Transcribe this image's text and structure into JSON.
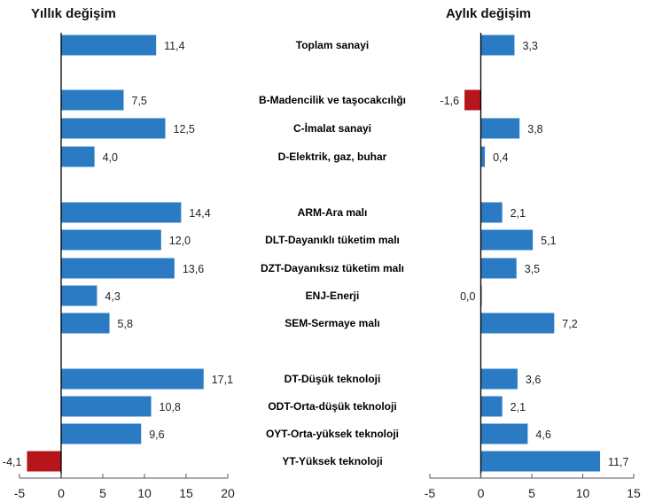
{
  "chart_data": [
    {
      "type": "bar",
      "orientation": "horizontal",
      "title": "Yıllık değişim",
      "xlabel": "",
      "ylabel": "",
      "xlim": [
        -5,
        20
      ],
      "xticks": [
        -5,
        0,
        5,
        10,
        15,
        20
      ],
      "categories": [
        "Toplam sanayi",
        "B-Madencilik ve taşocakcılığı",
        "C-İmalat sanayi",
        "D-Elektrik, gaz, buhar",
        "ARM-Ara malı",
        "DLT-Dayanıklı tüketim malı",
        "DZT-Dayanıksız tüketim malı",
        "ENJ-Enerji",
        "SEM-Sermaye malı",
        "DT-Düşük teknoloji",
        "ODT-Orta-düşük teknoloji",
        "OYT-Orta-yüksek teknoloji",
        "YT-Yüksek teknoloji"
      ],
      "values": [
        11.4,
        7.5,
        12.5,
        4.0,
        14.4,
        12.0,
        13.6,
        4.3,
        5.8,
        17.1,
        10.8,
        9.6,
        -4.1
      ],
      "value_labels": [
        "11,4",
        "7,5",
        "12,5",
        "4,0",
        "14,4",
        "12,0",
        "13,6",
        "4,3",
        "5,8",
        "17,1",
        "10,8",
        "9,6",
        "-4,1"
      ],
      "grid": false
    },
    {
      "type": "bar",
      "orientation": "horizontal",
      "title": "Aylık değişim",
      "xlabel": "",
      "ylabel": "",
      "xlim": [
        -5,
        15
      ],
      "xticks": [
        -5,
        0,
        5,
        10,
        15
      ],
      "categories": [
        "Toplam sanayi",
        "B-Madencilik ve taşocakcılığı",
        "C-İmalat sanayi",
        "D-Elektrik, gaz, buhar",
        "ARM-Ara malı",
        "DLT-Dayanıklı tüketim malı",
        "DZT-Dayanıksız tüketim malı",
        "ENJ-Enerji",
        "SEM-Sermaye malı",
        "DT-Düşük teknoloji",
        "ODT-Orta-düşük teknoloji",
        "OYT-Orta-yüksek teknoloji",
        "YT-Yüksek teknoloji"
      ],
      "values": [
        3.3,
        -1.6,
        3.8,
        0.4,
        2.1,
        5.1,
        3.5,
        0.0,
        7.2,
        3.6,
        2.1,
        4.6,
        11.7
      ],
      "value_labels": [
        "3,3",
        "-1,6",
        "3,8",
        "0,4",
        "2,1",
        "5,1",
        "3,5",
        "0,0",
        "7,2",
        "3,6",
        "2,1",
        "4,6",
        "11,7"
      ],
      "grid": false
    }
  ],
  "colors": {
    "positive": "#2a7bc4",
    "negative": "#b5151b"
  }
}
